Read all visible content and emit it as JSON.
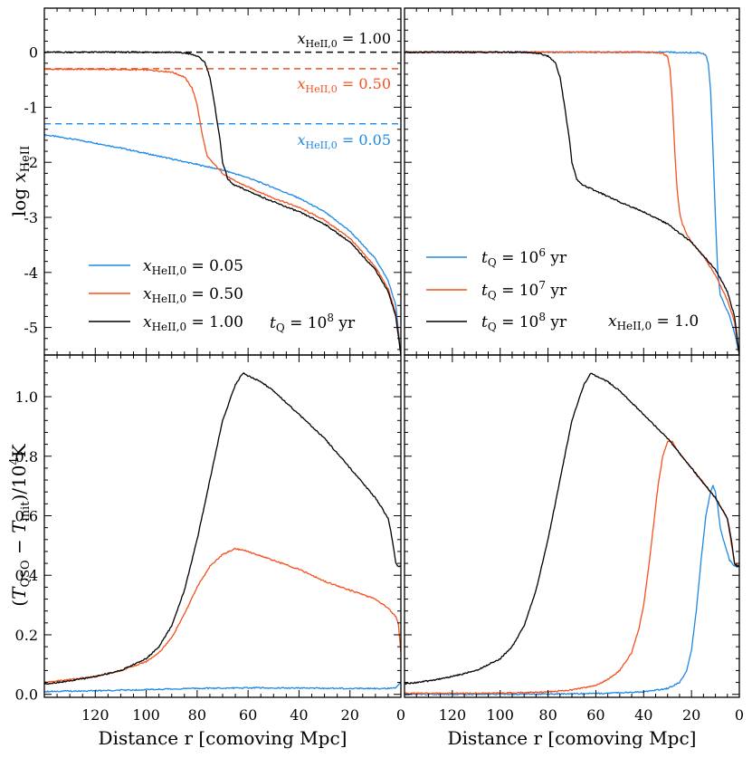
{
  "figure": {
    "xlabel": "Distance r  [comoving Mpc]",
    "colors": {
      "blue": "#1e88e5",
      "orange": "#f4511e",
      "black": "#000000"
    }
  },
  "chart_data": [
    {
      "panel": "top-left",
      "type": "line",
      "title": "",
      "xlabel": "",
      "ylabel": "log x_HeII",
      "xlim": [
        140,
        0
      ],
      "ylim": [
        -5.5,
        0.8
      ],
      "xticks": [
        120,
        100,
        80,
        60,
        40,
        20,
        0
      ],
      "yticks": [
        0,
        -1,
        -2,
        -3,
        -4,
        -5
      ],
      "ytick_labels": [
        "0",
        "-1",
        "-2",
        "-3",
        "-4",
        "-5"
      ],
      "hlines": [
        {
          "y": 0.0,
          "color": "#000000",
          "label": "x_HeII,0 = 1.00"
        },
        {
          "y": -0.3,
          "color": "#f4511e",
          "label": "x_HeII,0 = 0.50"
        },
        {
          "y": -1.3,
          "color": "#1e88e5",
          "label": "x_HeII,0 = 0.05"
        }
      ],
      "legend": {
        "placement": "lower-left",
        "entries": [
          "x_HeII,0 = 0.05",
          "x_HeII,0 = 0.50",
          "x_HeII,0 = 1.00"
        ]
      },
      "annotation": "t_Q = 10^8 yr",
      "series": [
        {
          "name": "x_HeII,0 = 0.05",
          "color": "#1e88e5",
          "x": [
            140,
            130,
            120,
            110,
            100,
            90,
            80,
            70,
            60,
            50,
            40,
            30,
            20,
            10,
            5,
            2,
            0
          ],
          "y": [
            -1.5,
            -1.57,
            -1.65,
            -1.74,
            -1.84,
            -1.94,
            -2.04,
            -2.14,
            -2.28,
            -2.46,
            -2.65,
            -2.9,
            -3.25,
            -3.75,
            -4.15,
            -4.6,
            -5.5
          ]
        },
        {
          "name": "x_HeII,0 = 0.50",
          "color": "#f4511e",
          "x": [
            140,
            120,
            100,
            90,
            85,
            82,
            80,
            78,
            76,
            74,
            72,
            70,
            66,
            60,
            50,
            40,
            30,
            20,
            10,
            5,
            2,
            0
          ],
          "y": [
            -0.31,
            -0.31,
            -0.32,
            -0.36,
            -0.45,
            -0.65,
            -0.95,
            -1.5,
            -1.9,
            -2.0,
            -2.1,
            -2.2,
            -2.32,
            -2.45,
            -2.65,
            -2.82,
            -3.05,
            -3.38,
            -3.9,
            -4.3,
            -4.75,
            -5.5
          ]
        },
        {
          "name": "x_HeII,0 = 1.00",
          "color": "#000000",
          "x": [
            140,
            110,
            90,
            84,
            80,
            77,
            75,
            73,
            71,
            70,
            68,
            66,
            62,
            60,
            50,
            40,
            30,
            20,
            10,
            5,
            2,
            0
          ],
          "y": [
            0.0,
            0.0,
            0.0,
            -0.02,
            -0.07,
            -0.18,
            -0.45,
            -1.0,
            -1.6,
            -2.0,
            -2.3,
            -2.4,
            -2.48,
            -2.52,
            -2.72,
            -2.9,
            -3.12,
            -3.45,
            -3.95,
            -4.35,
            -4.8,
            -5.5
          ]
        }
      ]
    },
    {
      "panel": "top-right",
      "type": "line",
      "title": "",
      "xlabel": "",
      "ylabel": "",
      "xlim": [
        140,
        0
      ],
      "ylim": [
        -5.5,
        0.8
      ],
      "xticks": [
        120,
        100,
        80,
        60,
        40,
        20,
        0
      ],
      "yticks": [
        0,
        -1,
        -2,
        -3,
        -4,
        -5
      ],
      "legend": {
        "placement": "lower-left",
        "entries": [
          "t_Q = 10^6 yr",
          "t_Q = 10^7 yr",
          "t_Q = 10^8 yr"
        ]
      },
      "annotation": "x_HeII,0 = 1.0",
      "series": [
        {
          "name": "t_Q = 10^6 yr",
          "color": "#1e88e5",
          "x": [
            140,
            30,
            16,
            14,
            13,
            12,
            11,
            10,
            9,
            8,
            6,
            4,
            2,
            0
          ],
          "y": [
            0.0,
            0.0,
            -0.01,
            -0.05,
            -0.2,
            -0.7,
            -1.8,
            -3.0,
            -4.0,
            -4.4,
            -4.6,
            -4.8,
            -5.1,
            -5.5
          ]
        },
        {
          "name": "t_Q = 10^7 yr",
          "color": "#f4511e",
          "x": [
            140,
            40,
            32,
            30,
            29,
            28,
            27,
            26,
            25,
            24,
            22,
            20,
            15,
            10,
            5,
            2,
            0
          ],
          "y": [
            0.0,
            0.0,
            -0.02,
            -0.08,
            -0.3,
            -0.9,
            -1.8,
            -2.5,
            -2.9,
            -3.1,
            -3.3,
            -3.45,
            -3.7,
            -4.05,
            -4.5,
            -4.9,
            -5.5
          ]
        },
        {
          "name": "t_Q = 10^8 yr",
          "color": "#000000",
          "x": [
            140,
            90,
            84,
            80,
            77,
            75,
            73,
            71,
            70,
            68,
            66,
            62,
            60,
            50,
            40,
            30,
            20,
            10,
            5,
            2,
            0
          ],
          "y": [
            0.0,
            0.0,
            -0.02,
            -0.07,
            -0.18,
            -0.45,
            -1.0,
            -1.6,
            -2.0,
            -2.3,
            -2.4,
            -2.48,
            -2.52,
            -2.72,
            -2.9,
            -3.12,
            -3.45,
            -3.95,
            -4.35,
            -4.8,
            -5.5
          ]
        }
      ]
    },
    {
      "panel": "bottom-left",
      "type": "line",
      "title": "",
      "xlabel": "Distance r  [comoving Mpc]",
      "ylabel": "(T_QSO - T_init)/10^4 K",
      "xlim": [
        140,
        0
      ],
      "ylim": [
        -0.01,
        1.14
      ],
      "xticks": [
        120,
        100,
        80,
        60,
        40,
        20,
        0
      ],
      "yticks": [
        0.0,
        0.2,
        0.4,
        0.6,
        0.8,
        1.0
      ],
      "ytick_labels": [
        "0.0",
        "0.2",
        "0.4",
        "0.6",
        "0.8",
        "1.0"
      ],
      "xtick_labels": [
        "120",
        "100",
        "80",
        "60",
        "40",
        "20",
        "0"
      ],
      "series": [
        {
          "name": "x_HeII,0 = 0.05",
          "color": "#1e88e5",
          "x": [
            140,
            120,
            100,
            80,
            60,
            40,
            20,
            5,
            2,
            1,
            0
          ],
          "y": [
            0.01,
            0.012,
            0.016,
            0.02,
            0.022,
            0.021,
            0.02,
            0.02,
            0.021,
            0.03,
            0.04
          ]
        },
        {
          "name": "x_HeII,0 = 0.50",
          "color": "#f4511e",
          "x": [
            140,
            130,
            120,
            110,
            100,
            95,
            90,
            85,
            80,
            75,
            70,
            65,
            60,
            50,
            40,
            30,
            20,
            10,
            5,
            2,
            1,
            0
          ],
          "y": [
            0.04,
            0.05,
            0.06,
            0.08,
            0.11,
            0.14,
            0.19,
            0.27,
            0.36,
            0.43,
            0.47,
            0.49,
            0.48,
            0.45,
            0.42,
            0.38,
            0.35,
            0.32,
            0.29,
            0.26,
            0.24,
            0.14
          ]
        },
        {
          "name": "x_HeII,0 = 1.00",
          "color": "#000000",
          "x": [
            140,
            130,
            120,
            110,
            100,
            95,
            90,
            85,
            80,
            75,
            70,
            65,
            62,
            60,
            55,
            50,
            40,
            30,
            20,
            10,
            7,
            5,
            4,
            3,
            2,
            1,
            0
          ],
          "y": [
            0.035,
            0.045,
            0.06,
            0.08,
            0.12,
            0.16,
            0.23,
            0.35,
            0.52,
            0.72,
            0.92,
            1.04,
            1.08,
            1.07,
            1.05,
            1.02,
            0.94,
            0.86,
            0.76,
            0.66,
            0.62,
            0.59,
            0.55,
            0.5,
            0.44,
            0.43,
            0.43
          ]
        }
      ]
    },
    {
      "panel": "bottom-right",
      "type": "line",
      "title": "",
      "xlabel": "Distance r  [comoving Mpc]",
      "ylabel": "",
      "xlim": [
        140,
        0
      ],
      "ylim": [
        -0.01,
        1.14
      ],
      "xticks": [
        120,
        100,
        80,
        60,
        40,
        20,
        0
      ],
      "xtick_labels": [
        "120",
        "100",
        "80",
        "60",
        "40",
        "20",
        "0"
      ],
      "yticks": [
        0.0,
        0.2,
        0.4,
        0.6,
        0.8,
        1.0
      ],
      "series": [
        {
          "name": "t_Q = 10^6 yr",
          "color": "#1e88e5",
          "x": [
            140,
            80,
            60,
            40,
            30,
            25,
            22,
            20,
            18,
            16,
            14,
            12,
            11,
            10,
            9,
            8,
            6,
            4,
            2,
            0
          ],
          "y": [
            0.0,
            0.001,
            0.003,
            0.008,
            0.02,
            0.04,
            0.08,
            0.15,
            0.28,
            0.45,
            0.6,
            0.68,
            0.7,
            0.68,
            0.63,
            0.56,
            0.5,
            0.45,
            0.43,
            0.43
          ]
        },
        {
          "name": "t_Q = 10^7 yr",
          "color": "#f4511e",
          "x": [
            140,
            100,
            80,
            70,
            60,
            55,
            50,
            45,
            42,
            40,
            38,
            36,
            34,
            32,
            30,
            28,
            26,
            24,
            20,
            15,
            10,
            5,
            2,
            0
          ],
          "y": [
            0.003,
            0.004,
            0.008,
            0.015,
            0.03,
            0.05,
            0.08,
            0.14,
            0.22,
            0.3,
            0.42,
            0.56,
            0.7,
            0.8,
            0.85,
            0.85,
            0.82,
            0.8,
            0.76,
            0.71,
            0.66,
            0.59,
            0.44,
            0.43
          ]
        },
        {
          "name": "t_Q = 10^8 yr",
          "color": "#000000",
          "x": [
            140,
            130,
            120,
            110,
            100,
            95,
            90,
            85,
            80,
            75,
            70,
            65,
            62,
            60,
            55,
            50,
            40,
            30,
            20,
            10,
            7,
            5,
            4,
            3,
            2,
            1,
            0
          ],
          "y": [
            0.035,
            0.045,
            0.06,
            0.08,
            0.12,
            0.16,
            0.23,
            0.35,
            0.52,
            0.72,
            0.92,
            1.04,
            1.08,
            1.07,
            1.05,
            1.02,
            0.94,
            0.86,
            0.76,
            0.66,
            0.62,
            0.59,
            0.55,
            0.5,
            0.44,
            0.43,
            0.43
          ]
        }
      ]
    }
  ]
}
